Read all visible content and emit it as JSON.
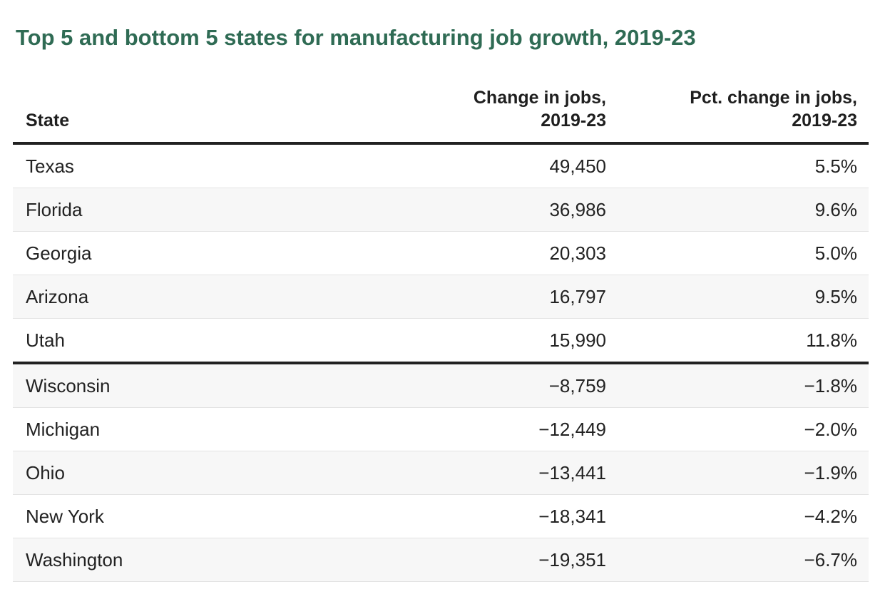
{
  "title": "Top 5 and bottom 5 states for manufacturing job growth, 2019-23",
  "table": {
    "columns": [
      {
        "lines": [
          "State"
        ]
      },
      {
        "lines": [
          "Change in jobs,",
          "2019-23"
        ]
      },
      {
        "lines": [
          "Pct. change in jobs,",
          "2019-23"
        ]
      }
    ],
    "rows": [
      {
        "state": "Texas",
        "change": "49,450",
        "pct": "5.5%"
      },
      {
        "state": "Florida",
        "change": "36,986",
        "pct": "9.6%"
      },
      {
        "state": "Georgia",
        "change": "20,303",
        "pct": "5.0%"
      },
      {
        "state": "Arizona",
        "change": "16,797",
        "pct": "9.5%"
      },
      {
        "state": "Utah",
        "change": "15,990",
        "pct": "11.8%"
      },
      {
        "state": "Wisconsin",
        "change": "−8,759",
        "pct": "−1.8%"
      },
      {
        "state": "Michigan",
        "change": "−12,449",
        "pct": "−2.0%"
      },
      {
        "state": "Ohio",
        "change": "−13,441",
        "pct": "−1.9%"
      },
      {
        "state": "New York",
        "change": "−18,341",
        "pct": "−4.2%"
      },
      {
        "state": "Washington",
        "change": "−19,351",
        "pct": "−6.7%"
      }
    ],
    "divider_before_row_index": 5
  },
  "chart_data": {
    "type": "table",
    "title": "Top 5 and bottom 5 states for manufacturing job growth, 2019-23",
    "columns": [
      "State",
      "Change in jobs, 2019-23",
      "Pct. change in jobs, 2019-23"
    ],
    "rows": [
      [
        "Texas",
        49450,
        5.5
      ],
      [
        "Florida",
        36986,
        9.6
      ],
      [
        "Georgia",
        20303,
        5.0
      ],
      [
        "Arizona",
        16797,
        9.5
      ],
      [
        "Utah",
        15990,
        11.8
      ],
      [
        "Wisconsin",
        -8759,
        -1.8
      ],
      [
        "Michigan",
        -12449,
        -2.0
      ],
      [
        "Ohio",
        -13441,
        -1.9
      ],
      [
        "New York",
        -18341,
        -4.2
      ],
      [
        "Washington",
        -19351,
        -6.7
      ]
    ],
    "groups": {
      "top5": [
        "Texas",
        "Florida",
        "Georgia",
        "Arizona",
        "Utah"
      ],
      "bottom5": [
        "Wisconsin",
        "Michigan",
        "Ohio",
        "New York",
        "Washington"
      ]
    }
  },
  "colors": {
    "title": "#2f6b54",
    "header_text": "#1f1f1f",
    "body_text": "#222222",
    "stripe": "#f7f7f7",
    "heavy_rule": "#212121",
    "light_rule": "#e3e3e3",
    "background": "#ffffff"
  }
}
